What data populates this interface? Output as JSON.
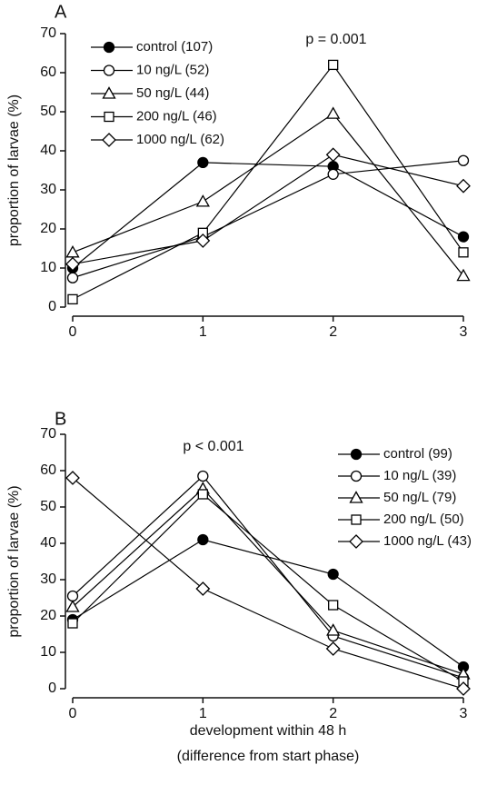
{
  "chart_data": [
    {
      "type": "line",
      "panel": "A",
      "annotation": "p = 0.001",
      "ylabel": "proportion of larvae (%)",
      "x": [
        0,
        1,
        2,
        3
      ],
      "xlim": [
        0,
        3
      ],
      "xticks": [
        0,
        1,
        2,
        3
      ],
      "ylim": [
        0,
        70
      ],
      "yticks": [
        0,
        10,
        20,
        30,
        40,
        50,
        60,
        70
      ],
      "legend": "upper left",
      "series": [
        {
          "name": "control (107)",
          "marker": "filled-circle",
          "color": "#000000",
          "values": [
            10,
            37,
            36,
            18
          ]
        },
        {
          "name": "10 ng/L (52)",
          "marker": "circle",
          "color": "#000000",
          "values": [
            7.5,
            18,
            34,
            37.5
          ]
        },
        {
          "name": "50 ng/L (44)",
          "marker": "triangle",
          "color": "#000000",
          "values": [
            14,
            27,
            49.5,
            8
          ]
        },
        {
          "name": "200 ng/L (46)",
          "marker": "square",
          "color": "#000000",
          "values": [
            2,
            19,
            62,
            14
          ]
        },
        {
          "name": "1000 ng/L (62)",
          "marker": "diamond",
          "color": "#000000",
          "values": [
            11,
            17,
            39,
            31
          ]
        }
      ]
    },
    {
      "type": "line",
      "panel": "B",
      "annotation": "p < 0.001",
      "ylabel": "proportion of larvae (%)",
      "xlabel": [
        "development within 48 h",
        "(difference from start phase)"
      ],
      "x": [
        0,
        1,
        2,
        3
      ],
      "xlim": [
        0,
        3
      ],
      "xticks": [
        0,
        1,
        2,
        3
      ],
      "ylim": [
        0,
        70
      ],
      "yticks": [
        0,
        10,
        20,
        30,
        40,
        50,
        60,
        70
      ],
      "legend": "upper right",
      "series": [
        {
          "name": "control (99)",
          "marker": "filled-circle",
          "color": "#000000",
          "values": [
            19,
            41,
            31.5,
            6
          ]
        },
        {
          "name": "10 ng/L (39)",
          "marker": "circle",
          "color": "#000000",
          "values": [
            25.5,
            58.5,
            14.5,
            3
          ]
        },
        {
          "name": "50 ng/L (79)",
          "marker": "triangle",
          "color": "#000000",
          "values": [
            22.5,
            55,
            16,
            4
          ]
        },
        {
          "name": "200 ng/L (50)",
          "marker": "square",
          "color": "#000000",
          "values": [
            18,
            53.5,
            23,
            2
          ]
        },
        {
          "name": "1000 ng/L (43)",
          "marker": "diamond",
          "color": "#000000",
          "values": [
            58,
            27.5,
            11,
            0
          ]
        }
      ]
    }
  ]
}
